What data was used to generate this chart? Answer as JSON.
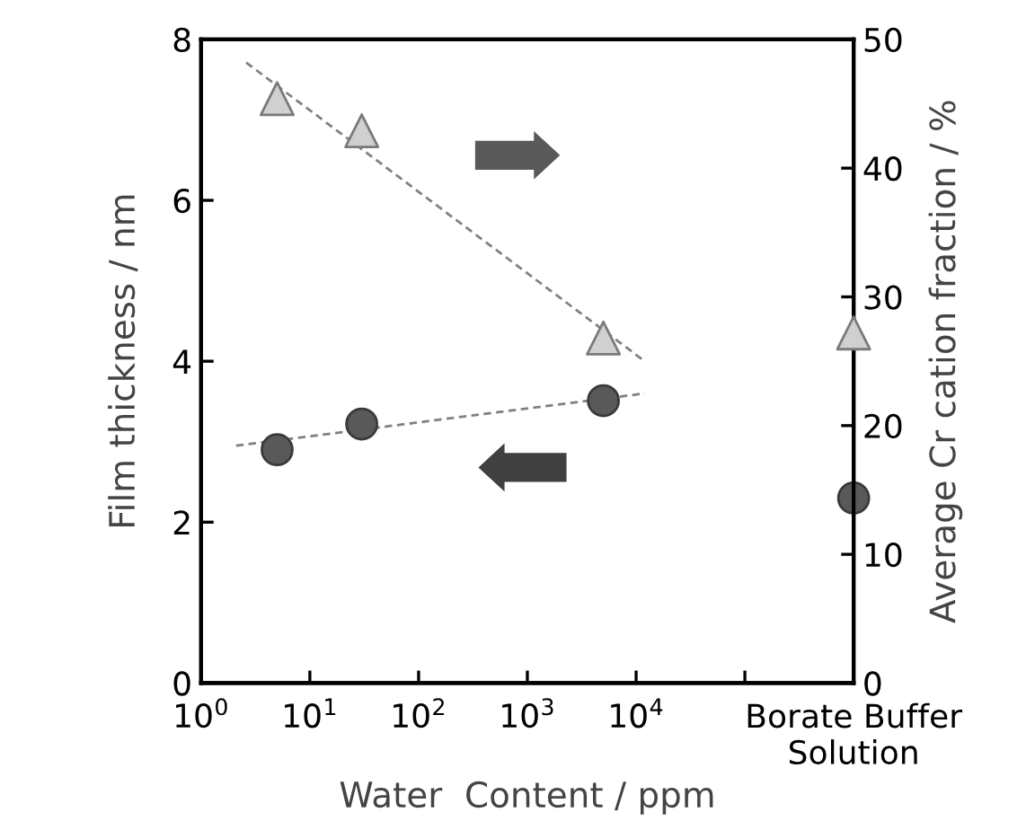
{
  "chart_data": {
    "type": "scatter",
    "xlabel": "Water  Content / ppm",
    "ylabel": "Film thickness / nm",
    "y2label": "Average Cr cation fraction / %",
    "log": "x",
    "xlim": [
      1,
      1000000
    ],
    "xticks": [
      {
        "value": 1,
        "label": "10$^{0}$"
      },
      {
        "value": 10,
        "label": "10$^{1}$"
      },
      {
        "value": 100,
        "label": "10$^{2}$"
      },
      {
        "value": 1000,
        "label": "10$^{3}$"
      },
      {
        "value": 10000,
        "label": "10$^{4}$"
      },
      {
        "value": 100000,
        "label": null
      },
      {
        "value": 1000000,
        "label": "Borate Buffer\nSolution"
      }
    ],
    "ylim": [
      0,
      8
    ],
    "yticks": [
      0,
      2,
      4,
      6,
      8
    ],
    "y2lim": [
      0,
      50
    ],
    "y2ticks": [
      0,
      10,
      20,
      30,
      40,
      50
    ],
    "grid": false,
    "legend": false,
    "series": [
      {
        "axis": "y",
        "marker": "circle",
        "color": "#595959",
        "x": [
          5,
          30,
          5000,
          1000000
        ],
        "values": [
          2.9,
          3.22,
          3.51,
          2.3
        ]
      },
      {
        "axis": "y2",
        "marker": "triangle",
        "color": "#d0d0d0",
        "x": [
          5,
          30,
          5000,
          1000000
        ],
        "values": [
          45.4,
          42.9,
          26.8,
          27.2
        ]
      },
      {
        "type": "line",
        "axis": "y",
        "line_style": "dashed",
        "color": "#808080",
        "x": [
          2.1,
          12000
        ],
        "values": [
          2.95,
          3.6
        ]
      },
      {
        "type": "line",
        "axis": "y2",
        "line_style": "dashed",
        "color": "#808080",
        "x": [
          2.6,
          12000
        ],
        "values": [
          48.2,
          25.0
        ]
      }
    ]
  }
}
